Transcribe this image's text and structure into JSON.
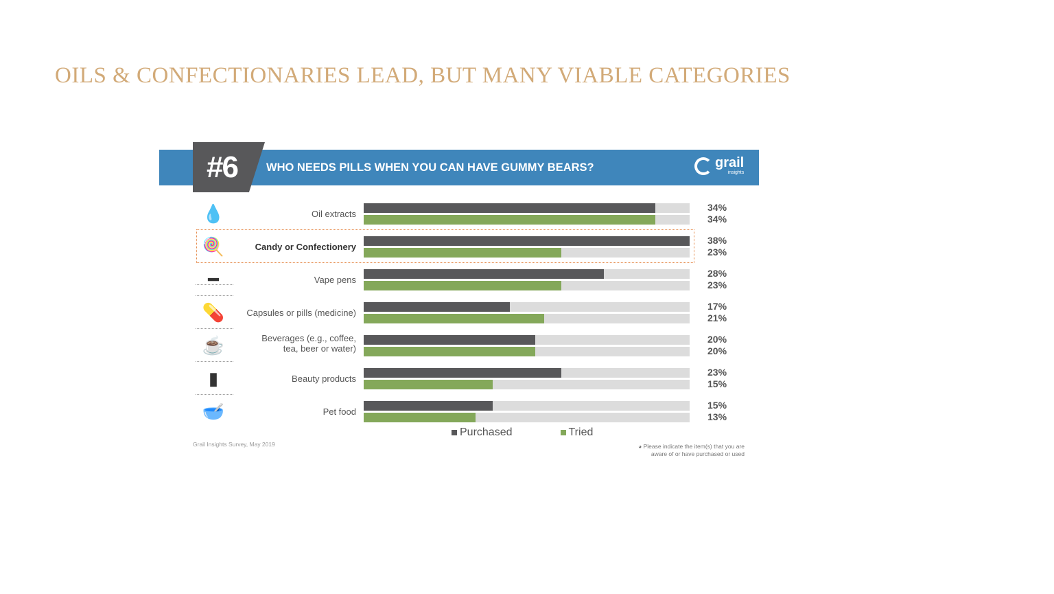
{
  "slide_title": "OILS & CONFECTIONARIES LEAD, BUT MANY VIABLE CATEGORIES",
  "banner": {
    "number": "#6",
    "title": "WHO NEEDS PILLS WHEN YOU CAN HAVE GUMMY BEARS?",
    "logo": "grail",
    "logo_sub": "insights"
  },
  "source": "Grail Insights Survey, May 2019",
  "note": "Please indicate the item(s) that you are aware of or have purchased or used",
  "colors": {
    "purchased": "#58585a",
    "tried": "#84a85a",
    "track": "#dcdcdc",
    "banner": "#3f86bb",
    "title": "#d2aa78"
  },
  "chart_data": {
    "type": "bar",
    "orientation": "horizontal",
    "categories": [
      "Oil extracts",
      "Candy or Confectionery",
      "Vape pens",
      "Capsules or pills (medicine)",
      "Beverages (e.g., coffee, tea, beer or water)",
      "Beauty products",
      "Pet food"
    ],
    "icons": [
      "oil-leaf-icon",
      "candy-icon",
      "vape-pen-icon",
      "pills-icon",
      "beverage-icon",
      "beauty-icon",
      "pet-food-icon"
    ],
    "highlighted": "Candy or Confectionery",
    "series": [
      {
        "name": "Purchased",
        "values": [
          34,
          38,
          28,
          17,
          20,
          23,
          15
        ]
      },
      {
        "name": "Tried",
        "values": [
          34,
          23,
          23,
          21,
          20,
          15,
          13
        ]
      }
    ],
    "xlim": [
      0,
      38
    ],
    "unit": "%",
    "legend": "bottom"
  }
}
